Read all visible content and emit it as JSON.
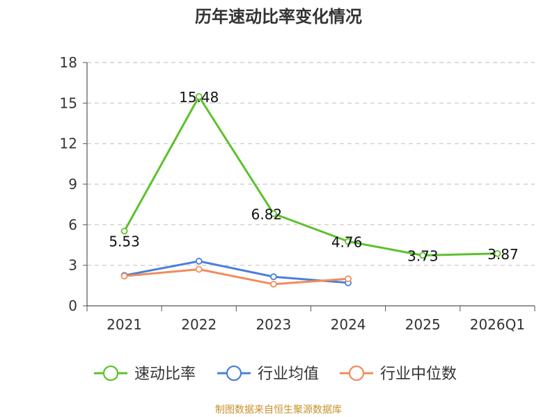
{
  "chart_data": {
    "type": "line",
    "title": "历年速动比率变化情况",
    "categories": [
      "2021",
      "2022",
      "2023",
      "2024",
      "2025",
      "2026Q1"
    ],
    "ylim": [
      0,
      18
    ],
    "yticks": [
      0,
      3,
      6,
      9,
      12,
      15,
      18
    ],
    "grid": true,
    "legend_position": "bottom",
    "series": [
      {
        "name": "速动比率",
        "color": "#5cc12b",
        "values": [
          5.53,
          15.48,
          6.82,
          4.76,
          3.73,
          3.87
        ],
        "labels": [
          "5.53",
          "15.48",
          "6.82",
          "4.76",
          "3.73",
          "3.87"
        ]
      },
      {
        "name": "行业均值",
        "color": "#4a7fd9",
        "values": [
          2.25,
          3.3,
          2.15,
          1.7,
          null,
          null
        ]
      },
      {
        "name": "行业中位数",
        "color": "#f28c5a",
        "values": [
          2.2,
          2.7,
          1.6,
          2.0,
          null,
          null
        ]
      }
    ],
    "source": "制图数据来自恒生聚源数据库"
  }
}
